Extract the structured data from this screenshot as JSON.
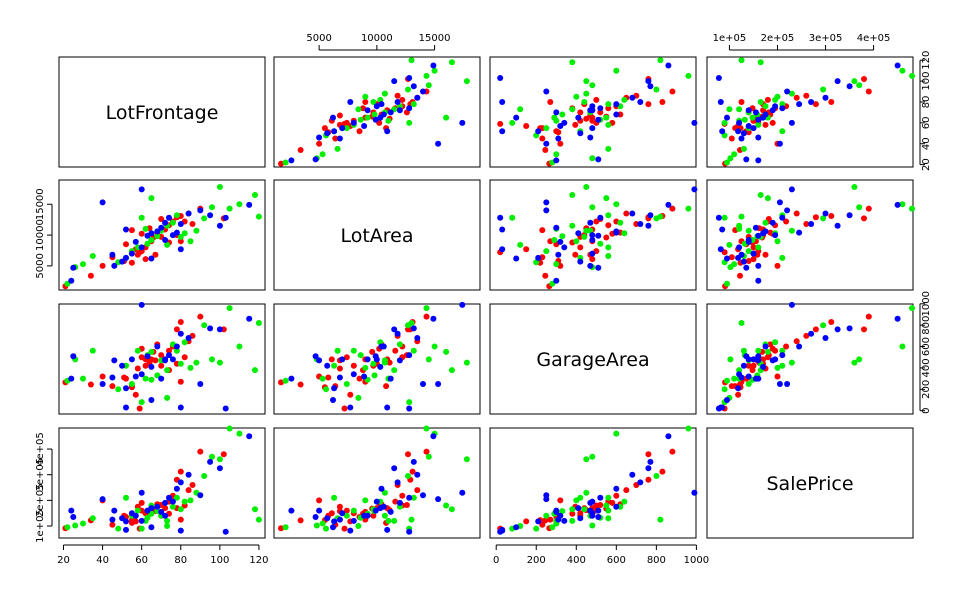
{
  "chart_data": {
    "type": "scatter",
    "variables": [
      {
        "name": "LotFrontage",
        "ticks": [
          20,
          40,
          60,
          80,
          100,
          120
        ]
      },
      {
        "name": "LotArea",
        "ticks": [
          5000,
          10000,
          15000
        ]
      },
      {
        "name": "GarageArea",
        "ticks": [
          0,
          200,
          400,
          600,
          800,
          1000
        ]
      },
      {
        "name": "SalePrice",
        "ticks": [
          100000,
          200000,
          300000,
          400000
        ]
      }
    ],
    "tick_labels": {
      "LotFrontage": [
        "20",
        "40",
        "60",
        "80",
        "100",
        "120"
      ],
      "LotArea": [
        "5000",
        "10000",
        "15000"
      ],
      "GarageArea": [
        "0",
        "200",
        "400",
        "600",
        "800",
        "1000"
      ],
      "SalePrice": [
        "1e+05",
        "2e+05",
        "3e+05",
        "4e+05"
      ]
    },
    "ranges": {
      "LotFrontage": [
        17.7,
        123.1
      ],
      "LotArea": [
        1094,
        18932
      ],
      "GarageArea": [
        -31,
        998
      ],
      "SalePrice": [
        53300,
        482000
      ]
    },
    "colors": {
      "red": "#ff0000",
      "green": "#00ee00",
      "blue": "#0000ff"
    },
    "series": [
      {
        "color": "red",
        "points": [
          [
            21,
            1700,
            265,
            91000
          ],
          [
            34,
            3400,
            245,
            122000
          ],
          [
            51,
            5800,
            310,
            140000
          ],
          [
            55,
            5500,
            220,
            123000
          ],
          [
            58,
            6800,
            395,
            175000
          ],
          [
            60,
            7400,
            500,
            160000
          ],
          [
            62,
            8000,
            420,
            150000
          ],
          [
            65,
            9000,
            480,
            155000
          ],
          [
            66,
            9600,
            550,
            168000
          ],
          [
            68,
            10400,
            620,
            185000
          ],
          [
            70,
            9700,
            420,
            140000
          ],
          [
            72,
            10900,
            480,
            170000
          ],
          [
            74,
            11600,
            560,
            195000
          ],
          [
            76,
            12200,
            600,
            218000
          ],
          [
            78,
            12900,
            760,
            280000
          ],
          [
            80,
            13100,
            830,
            312000
          ],
          [
            82,
            12200,
            500,
            180000
          ],
          [
            84,
            13500,
            650,
            240000
          ],
          [
            86,
            11800,
            700,
            260000
          ],
          [
            90,
            14300,
            880,
            390000
          ],
          [
            62,
            6100,
            480,
            150000
          ],
          [
            57,
            7700,
            150,
            118000
          ],
          [
            52,
            8500,
            300,
            135000
          ],
          [
            64,
            11100,
            450,
            162000
          ],
          [
            70,
            12600,
            520,
            182000
          ],
          [
            80,
            9000,
            270,
            125000
          ],
          [
            45,
            6400,
            230,
            105000
          ],
          [
            60,
            10200,
            580,
            190000
          ],
          [
            74,
            8800,
            380,
            148000
          ],
          [
            102,
            12700,
            760,
            380000
          ],
          [
            55,
            10800,
            230,
            112000
          ],
          [
            67,
            6800,
            470,
            158000
          ],
          [
            40,
            5000,
            320,
            200000
          ],
          [
            59,
            7200,
            20,
            90000
          ],
          [
            78,
            10000,
            440,
            170000
          ]
        ]
      },
      {
        "color": "green",
        "points": [
          [
            22,
            2100,
            280,
            95000
          ],
          [
            26,
            4800,
            480,
            102000
          ],
          [
            30,
            5300,
            300,
            110000
          ],
          [
            35,
            6600,
            560,
            130000
          ],
          [
            52,
            6300,
            420,
            210000
          ],
          [
            55,
            7400,
            250,
            140000
          ],
          [
            58,
            8000,
            560,
            160000
          ],
          [
            63,
            8600,
            520,
            132000
          ],
          [
            65,
            9200,
            290,
            148000
          ],
          [
            68,
            9800,
            330,
            158000
          ],
          [
            70,
            10700,
            470,
            140000
          ],
          [
            73,
            11500,
            380,
            120000
          ],
          [
            76,
            12000,
            620,
            175000
          ],
          [
            78,
            13200,
            560,
            210000
          ],
          [
            80,
            9700,
            440,
            165000
          ],
          [
            82,
            10300,
            640,
            195000
          ],
          [
            88,
            10700,
            450,
            230000
          ],
          [
            92,
            12700,
            800,
            295000
          ],
          [
            96,
            14500,
            480,
            370000
          ],
          [
            100,
            17800,
            450,
            360000
          ],
          [
            105,
            14300,
            960,
            480000
          ],
          [
            110,
            15000,
            600,
            460000
          ],
          [
            118,
            16500,
            380,
            165000
          ],
          [
            120,
            13000,
            820,
            125000
          ],
          [
            60,
            12800,
            80,
            90000
          ],
          [
            62,
            11000,
            300,
            120000
          ],
          [
            73,
            8400,
            120,
            100000
          ],
          [
            48,
            5600,
            200,
            90000
          ],
          [
            85,
            9000,
            400,
            200000
          ],
          [
            65,
            16000,
            550,
            180000
          ]
        ]
      },
      {
        "color": "blue",
        "points": [
          [
            24,
            2600,
            300,
            160000
          ],
          [
            25,
            4700,
            510,
            135000
          ],
          [
            40,
            15300,
            250,
            205000
          ],
          [
            45,
            6800,
            310,
            125000
          ],
          [
            50,
            5700,
            420,
            130000
          ],
          [
            52,
            6300,
            210,
            118000
          ],
          [
            55,
            7000,
            480,
            150000
          ],
          [
            57,
            8900,
            320,
            140000
          ],
          [
            60,
            17400,
            990,
            230000
          ],
          [
            63,
            9900,
            510,
            160000
          ],
          [
            65,
            10300,
            410,
            170000
          ],
          [
            68,
            10600,
            600,
            175000
          ],
          [
            70,
            11200,
            300,
            155000
          ],
          [
            72,
            12000,
            470,
            190000
          ],
          [
            74,
            12800,
            520,
            210000
          ],
          [
            76,
            10000,
            480,
            195000
          ],
          [
            80,
            11800,
            720,
            270000
          ],
          [
            84,
            13500,
            680,
            300000
          ],
          [
            90,
            14000,
            250,
            220000
          ],
          [
            95,
            13200,
            770,
            350000
          ],
          [
            100,
            11500,
            760,
            325000
          ],
          [
            115,
            14900,
            860,
            450000
          ],
          [
            60,
            8000,
            340,
            120000
          ],
          [
            65,
            6200,
            100,
            95000
          ],
          [
            52,
            10900,
            30,
            85000
          ],
          [
            72,
            9200,
            480,
            140000
          ],
          [
            80,
            7700,
            30,
            82000
          ],
          [
            46,
            5000,
            470,
            160000
          ],
          [
            103,
            12800,
            20,
            78000
          ],
          [
            78,
            10400,
            600,
            245000
          ]
        ]
      }
    ]
  }
}
